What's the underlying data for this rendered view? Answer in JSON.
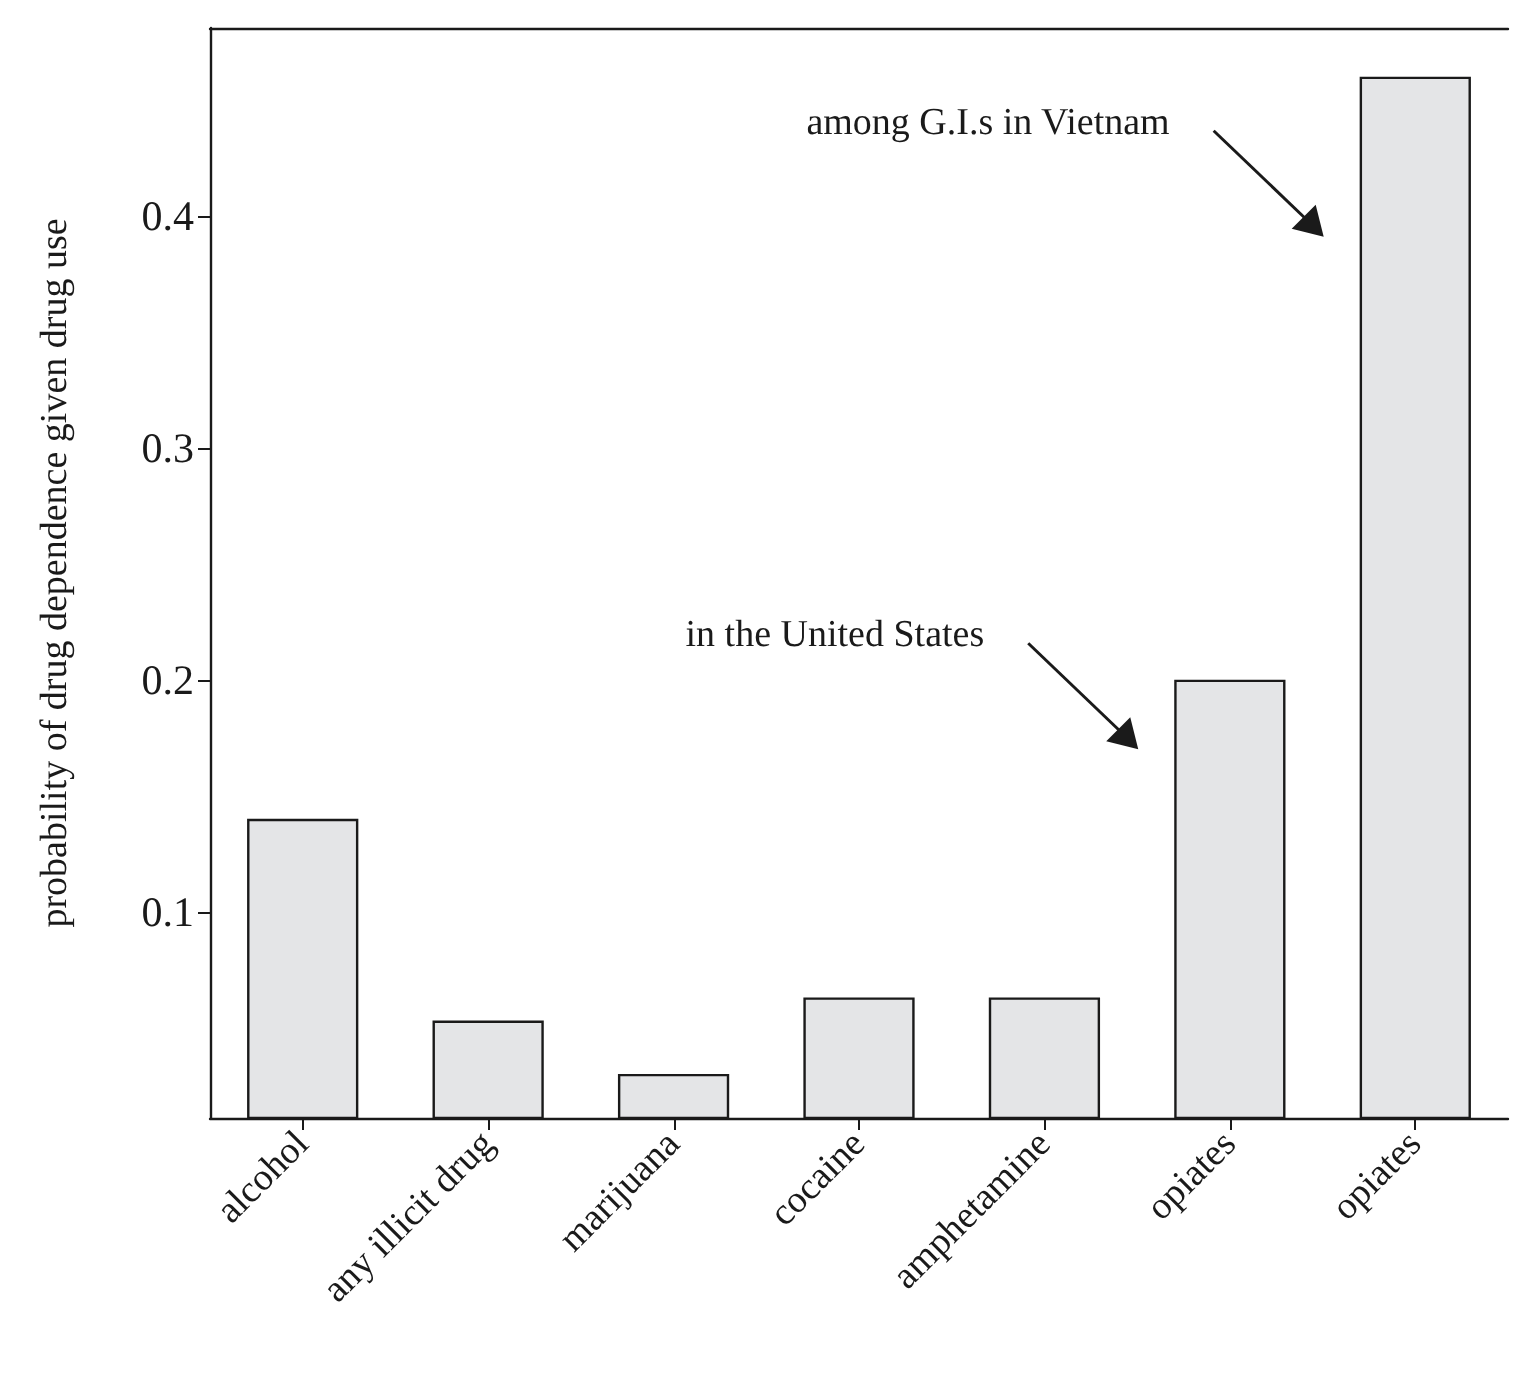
{
  "chart_data": {
    "type": "bar",
    "ylabel": "probability of drug dependence given drug use",
    "categories": [
      "alcohol",
      "any illicit drug",
      "marijuana",
      "cocaine",
      "amphetamine",
      "opiates",
      "opiates"
    ],
    "values": [
      0.14,
      0.053,
      0.03,
      0.063,
      0.063,
      0.2,
      0.46
    ],
    "color": "#e4e5e7",
    "ylim": [
      0.011,
      0.481
    ],
    "yticks": [
      0.1,
      0.2,
      0.3,
      0.4
    ],
    "grid": false,
    "annotations": [
      "in the United States",
      "among G.I.s in Vietnam"
    ]
  }
}
